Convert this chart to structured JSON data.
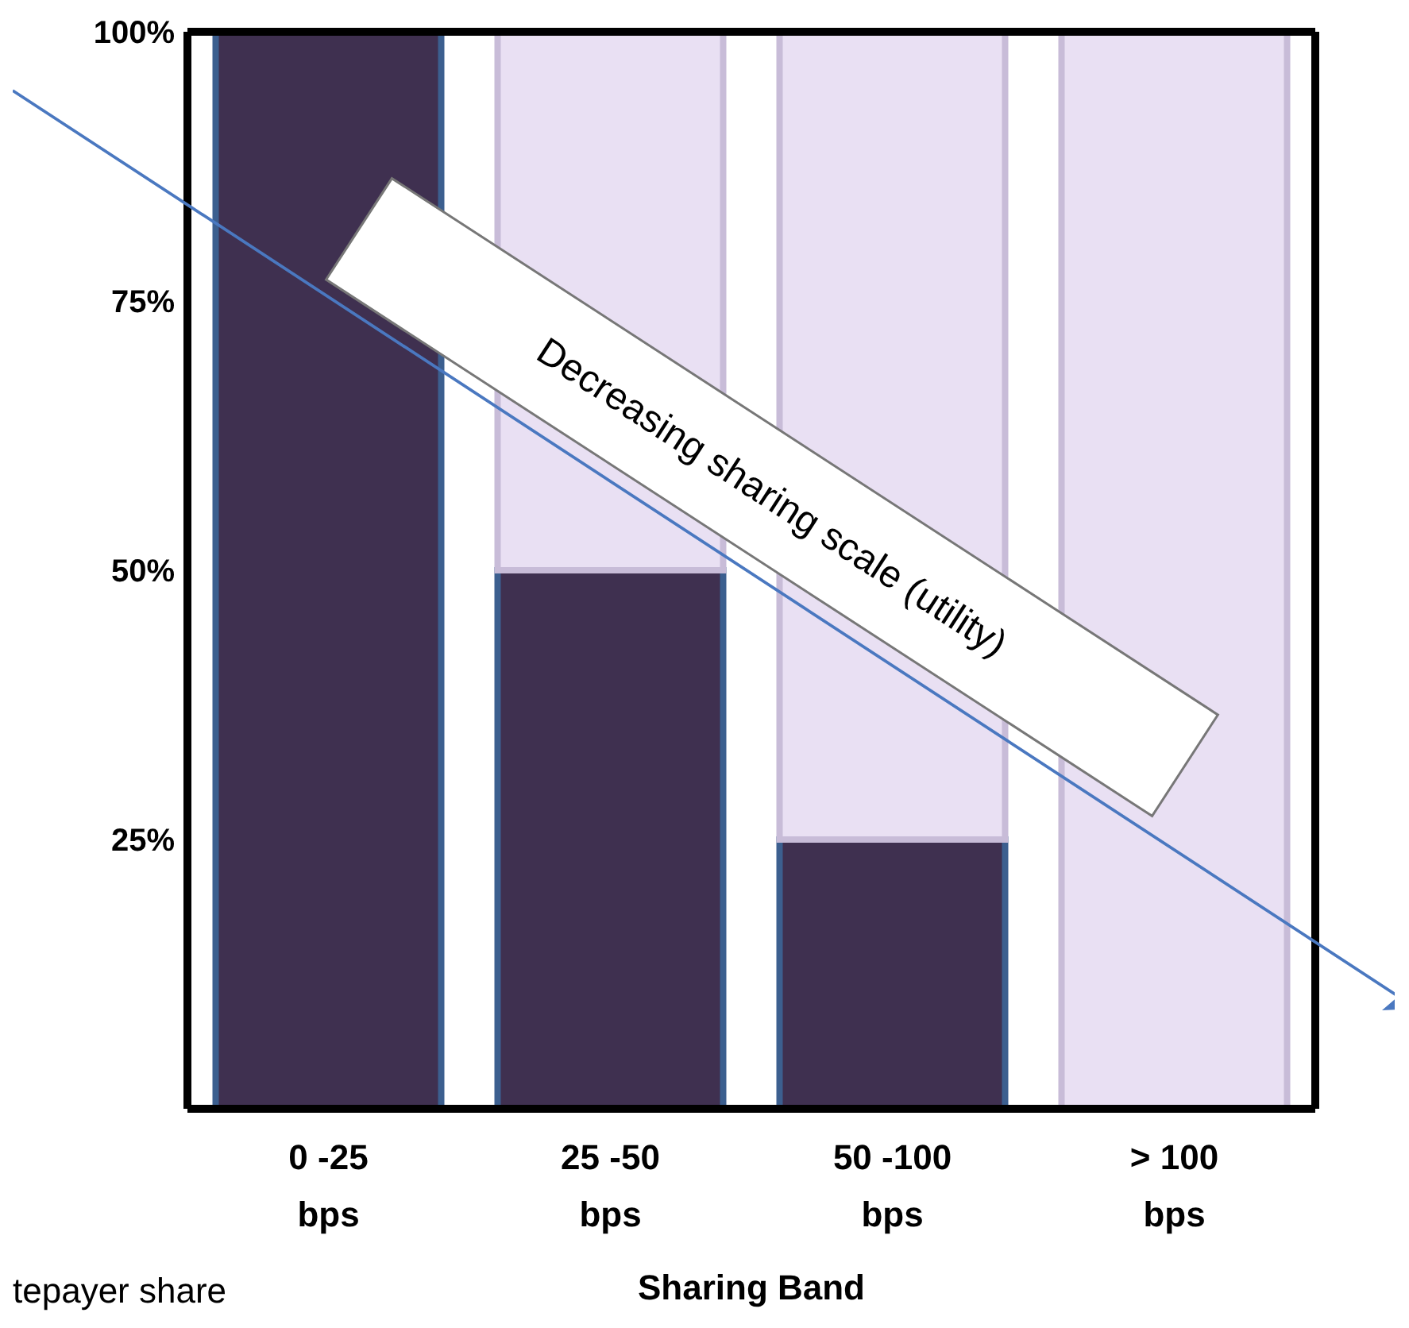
{
  "chart_data": {
    "type": "bar",
    "stacked": true,
    "categories": [
      "0 -25 bps",
      "25 -50 bps",
      "50 -100 bps",
      "> 100 bps"
    ],
    "series": [
      {
        "color": "#3f3050",
        "values": [
          100,
          50,
          25,
          0
        ]
      },
      {
        "color": "#e9e0f3",
        "values": [
          0,
          50,
          75,
          100
        ]
      }
    ],
    "xlabel": "Sharing Band",
    "ylim": [
      0,
      100
    ],
    "yticks": [
      {
        "value": 25,
        "label": "25%"
      },
      {
        "value": 50,
        "label": "50%"
      },
      {
        "value": 75,
        "label": "75%"
      },
      {
        "value": 100,
        "label": "100%"
      }
    ],
    "grid": false,
    "legend": false,
    "annotations": [
      "Decreasing sharing scale (utility)",
      "tepayer share"
    ]
  }
}
